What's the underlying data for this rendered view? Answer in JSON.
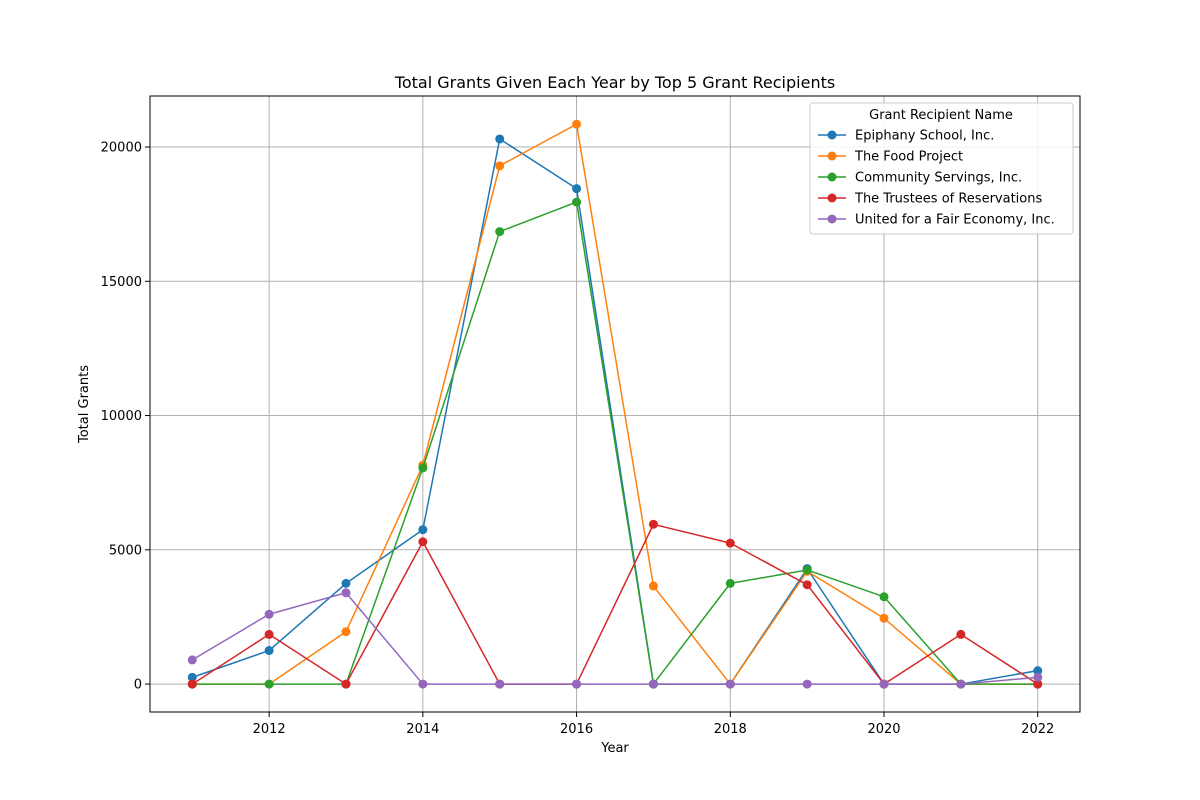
{
  "chart_data": {
    "type": "line",
    "title": "Total Grants Given Each Year by Top 5 Grant Recipients",
    "xlabel": "Year",
    "ylabel": "Total Grants",
    "x": [
      2011,
      2012,
      2013,
      2014,
      2015,
      2016,
      2017,
      2018,
      2019,
      2020,
      2021,
      2022
    ],
    "xlim": [
      2010.45,
      2022.55
    ],
    "ylim": [
      -1040,
      21900
    ],
    "xticks": [
      2012,
      2014,
      2016,
      2018,
      2020,
      2022
    ],
    "yticks": [
      0,
      5000,
      10000,
      15000,
      20000
    ],
    "grid": true,
    "legend": {
      "title": "Grant Recipient Name",
      "position": "top-right"
    },
    "series": [
      {
        "name": "Epiphany School, Inc.",
        "color": "#1f77b4",
        "values": [
          250,
          1250,
          3750,
          5750,
          20300,
          18450,
          0,
          0,
          4300,
          0,
          0,
          500
        ]
      },
      {
        "name": "The Food Project",
        "color": "#ff7f0e",
        "values": [
          0,
          0,
          1950,
          8150,
          19300,
          20850,
          3650,
          0,
          4200,
          2450,
          0,
          0
        ]
      },
      {
        "name": "Community Servings, Inc.",
        "color": "#2ca02c",
        "values": [
          0,
          0,
          0,
          8050,
          16850,
          17950,
          0,
          3750,
          4250,
          3250,
          0,
          0
        ]
      },
      {
        "name": "The Trustees of Reservations",
        "color": "#d62728",
        "values": [
          0,
          1850,
          0,
          5300,
          0,
          0,
          5950,
          5250,
          3700,
          0,
          1850,
          0
        ]
      },
      {
        "name": "United for a Fair Economy, Inc.",
        "color": "#9467bd",
        "values": [
          900,
          2600,
          3400,
          0,
          0,
          0,
          0,
          0,
          0,
          0,
          0,
          250
        ]
      }
    ]
  }
}
